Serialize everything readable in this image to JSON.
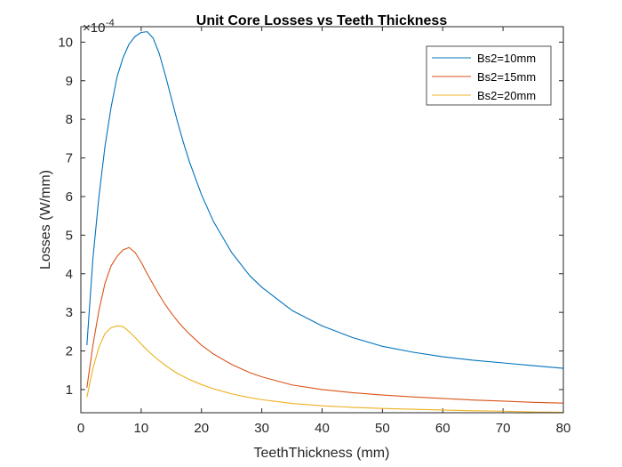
{
  "chart_data": {
    "type": "line",
    "title": "Unit Core Losses vs Teeth Thickness",
    "xlabel": "TeethThickness (mm)",
    "ylabel": "Losses (W/mm)",
    "y_multiplier": "×10",
    "y_exponent": "-4",
    "xlim": [
      0,
      80
    ],
    "ylim": [
      0.4,
      10.4
    ],
    "x_ticks": [
      "0",
      "10",
      "20",
      "30",
      "40",
      "50",
      "60",
      "70",
      "80"
    ],
    "y_ticks": [
      "1",
      "2",
      "3",
      "4",
      "5",
      "6",
      "7",
      "8",
      "9",
      "10"
    ],
    "legend_position": "top-right",
    "x": [
      1,
      2,
      3,
      4,
      5,
      6,
      7,
      8,
      9,
      10,
      11,
      12,
      13,
      14,
      15,
      16,
      17,
      18,
      20,
      22,
      25,
      28,
      30,
      35,
      40,
      45,
      50,
      55,
      60,
      65,
      70,
      75,
      80
    ],
    "series": [
      {
        "name": "Bs2=10mm",
        "color": "#0072BD",
        "values": [
          2.15,
          4.4,
          6.0,
          7.3,
          8.3,
          9.1,
          9.6,
          9.95,
          10.15,
          10.25,
          10.27,
          10.1,
          9.7,
          9.15,
          8.55,
          7.95,
          7.4,
          6.9,
          6.05,
          5.35,
          4.55,
          3.95,
          3.65,
          3.05,
          2.65,
          2.35,
          2.12,
          1.97,
          1.85,
          1.76,
          1.69,
          1.62,
          1.55
        ]
      },
      {
        "name": "Bs2=15mm",
        "color": "#D95319",
        "values": [
          1.05,
          2.15,
          3.05,
          3.75,
          4.2,
          4.45,
          4.62,
          4.68,
          4.55,
          4.3,
          4.0,
          3.72,
          3.45,
          3.2,
          2.98,
          2.78,
          2.6,
          2.44,
          2.15,
          1.92,
          1.65,
          1.44,
          1.33,
          1.12,
          1.0,
          0.92,
          0.86,
          0.81,
          0.77,
          0.73,
          0.7,
          0.67,
          0.65
        ]
      },
      {
        "name": "Bs2=20mm",
        "color": "#EDB120",
        "values": [
          0.8,
          1.55,
          2.1,
          2.45,
          2.6,
          2.65,
          2.63,
          2.5,
          2.35,
          2.18,
          2.02,
          1.88,
          1.75,
          1.63,
          1.52,
          1.42,
          1.34,
          1.26,
          1.13,
          1.02,
          0.89,
          0.79,
          0.74,
          0.64,
          0.58,
          0.54,
          0.51,
          0.49,
          0.47,
          0.45,
          0.44,
          0.42,
          0.41
        ]
      }
    ]
  }
}
